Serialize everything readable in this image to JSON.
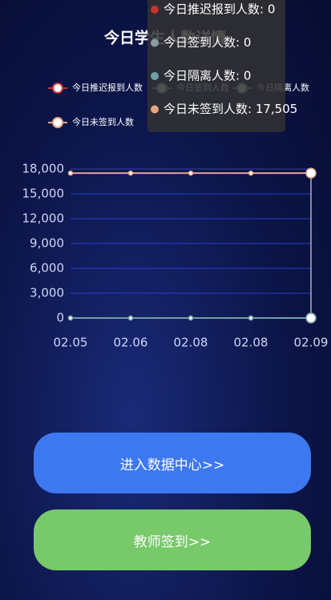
{
  "chart_data": {
    "type": "line",
    "title": "今日学生人数详情",
    "categories": [
      "02.05",
      "02.06",
      "02.08",
      "02.08",
      "02.09"
    ],
    "series": [
      {
        "name": "今日推迟报到人数",
        "color": "#c23531",
        "values": [
          0,
          0,
          0,
          0,
          0
        ]
      },
      {
        "name": "今日签到人数",
        "color": "#8a9aa6",
        "values": [
          0,
          0,
          0,
          0,
          0
        ]
      },
      {
        "name": "今日隔离人数",
        "color": "#6f9fa8",
        "values": [
          0,
          0,
          0,
          0,
          0
        ]
      },
      {
        "name": "今日未签到人数",
        "color": "#e8a583",
        "values": [
          17505,
          17505,
          17505,
          17505,
          17505
        ]
      }
    ],
    "ylim": [
      0,
      18000
    ],
    "yticks": [
      0,
      {
        "value": 3000,
        "label": "3,000"
      },
      {
        "value": 6000,
        "label": "6,000"
      },
      {
        "value": 9000,
        "label": "9,000"
      },
      {
        "value": 12000,
        "label": "12,000"
      },
      {
        "value": 15000,
        "label": "15,000"
      },
      {
        "value": 18000,
        "label": "18,000"
      }
    ],
    "grid": true,
    "tooltip": {
      "rows": [
        "今日推迟报到人数: 0",
        "今日签到人数: 0",
        "今日隔离人数: 0",
        "今日未签到人数: 17,505"
      ]
    }
  },
  "buttons": [
    "进入数据中心>>",
    "教师签到>>"
  ]
}
